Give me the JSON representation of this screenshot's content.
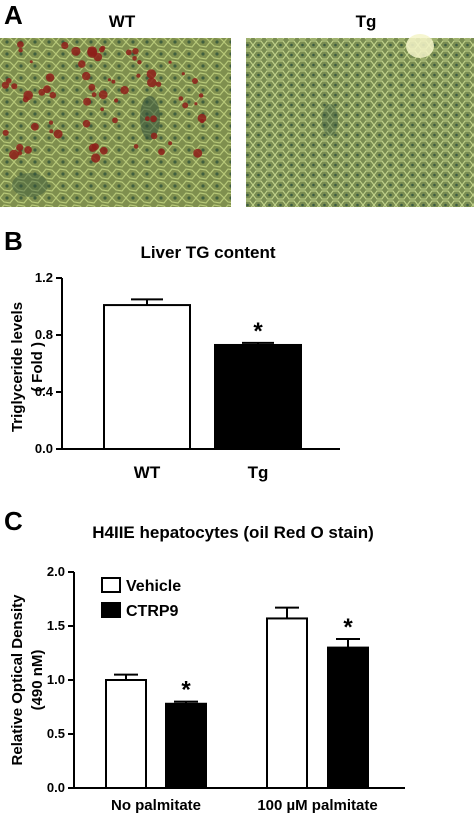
{
  "panel_a": {
    "letter": "A",
    "left_label": "WT",
    "right_label": "Tg",
    "tissue_color": "#7f8f4e",
    "droplet_color": "#8e1f1a"
  },
  "chart_data": [
    {
      "panel": "B",
      "type": "bar",
      "title": "Liver TG content",
      "ylabel": "Triglyceride levels",
      "ylabel2": "( Fold )",
      "xlabel": "",
      "categories": [
        "WT",
        "Tg"
      ],
      "values": [
        1.01,
        0.73
      ],
      "errors": [
        0.04,
        0.015
      ],
      "fills": [
        "#ffffff",
        "#000000"
      ],
      "significance": [
        "",
        "*"
      ],
      "ylim": [
        0,
        1.2
      ],
      "yticks": [
        "0.0",
        "0.4",
        "0.8",
        "1.2"
      ],
      "ytick_values": [
        0,
        0.4,
        0.8,
        1.2
      ],
      "grid": false
    },
    {
      "panel": "C",
      "type": "bar",
      "title": "H4IIE hepatocytes (oil Red O stain)",
      "ylabel": "Relative Optical Density",
      "ylabel2": "(490 nM)",
      "xlabel": "",
      "categories": [
        "No palmitate",
        "100 µM palmitate"
      ],
      "series": [
        {
          "name": "Vehicle",
          "values": [
            1.0,
            1.57
          ],
          "errors": [
            0.05,
            0.1
          ],
          "fill": "#ffffff",
          "significance": [
            "",
            ""
          ]
        },
        {
          "name": "CTRP9",
          "values": [
            0.78,
            1.3
          ],
          "errors": [
            0.02,
            0.08
          ],
          "fill": "#000000",
          "significance": [
            "*",
            "*"
          ]
        }
      ],
      "ylim": [
        0,
        2.0
      ],
      "yticks": [
        "0.0",
        "0.5",
        "1.0",
        "1.5",
        "2.0"
      ],
      "ytick_values": [
        0,
        0.5,
        1.0,
        1.5,
        2.0
      ],
      "legend_position": "top-left",
      "grid": false
    }
  ]
}
